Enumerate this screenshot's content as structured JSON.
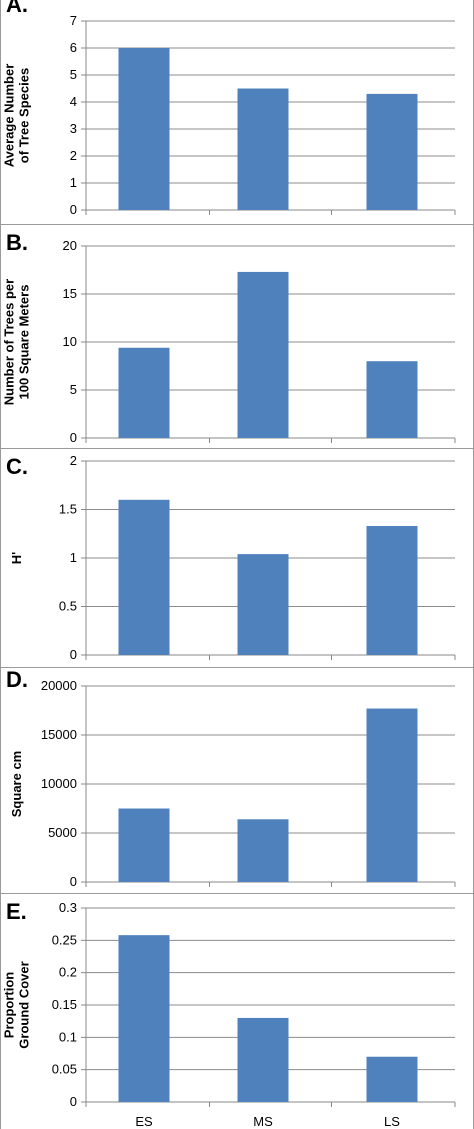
{
  "colors": {
    "bar": "#4f81bd",
    "grid": "#8c8c8c",
    "axis": "#888888",
    "border": "#9a9a9a",
    "text": "#000000"
  },
  "chart_data": [
    {
      "type": "bar",
      "panel_label": "A.",
      "categories": [
        "ES",
        "MS",
        "LS"
      ],
      "show_category_labels": false,
      "values": [
        6.0,
        4.5,
        4.3
      ],
      "ylabel": [
        "Average Number",
        "of Tree Species"
      ],
      "ylim": [
        0,
        7
      ],
      "yticks": [
        {
          "v": 0,
          "t": "0"
        },
        {
          "v": 1,
          "t": "1"
        },
        {
          "v": 2,
          "t": "2"
        },
        {
          "v": 3,
          "t": "3"
        },
        {
          "v": 4,
          "t": "4"
        },
        {
          "v": 5,
          "t": "5"
        },
        {
          "v": 6,
          "t": "6"
        },
        {
          "v": 7,
          "t": "7"
        }
      ],
      "grid": true
    },
    {
      "type": "bar",
      "panel_label": "B.",
      "categories": [
        "ES",
        "MS",
        "LS"
      ],
      "show_category_labels": false,
      "values": [
        9.4,
        17.3,
        8.0
      ],
      "ylabel": [
        "Number of Trees per",
        "100 Square Meters"
      ],
      "ylim": [
        0,
        20
      ],
      "yticks": [
        {
          "v": 0,
          "t": "0"
        },
        {
          "v": 5,
          "t": "5"
        },
        {
          "v": 10,
          "t": "10"
        },
        {
          "v": 15,
          "t": "15"
        },
        {
          "v": 20,
          "t": "20"
        }
      ],
      "grid": true
    },
    {
      "type": "bar",
      "panel_label": "C.",
      "categories": [
        "ES",
        "MS",
        "LS"
      ],
      "show_category_labels": false,
      "values": [
        1.6,
        1.04,
        1.33
      ],
      "ylabel": [
        "H'"
      ],
      "ylim": [
        0,
        2
      ],
      "yticks": [
        {
          "v": 0,
          "t": "0"
        },
        {
          "v": 0.5,
          "t": "0.5"
        },
        {
          "v": 1,
          "t": "1"
        },
        {
          "v": 1.5,
          "t": "1.5"
        },
        {
          "v": 2,
          "t": "2"
        }
      ],
      "grid": true
    },
    {
      "type": "bar",
      "panel_label": "D.",
      "categories": [
        "ES",
        "MS",
        "LS"
      ],
      "show_category_labels": false,
      "values": [
        7500,
        6400,
        17700
      ],
      "ylabel": [
        "Square cm"
      ],
      "ylim": [
        0,
        20000
      ],
      "yticks": [
        {
          "v": 0,
          "t": "0"
        },
        {
          "v": 5000,
          "t": "5000"
        },
        {
          "v": 10000,
          "t": "10000"
        },
        {
          "v": 15000,
          "t": "15000"
        },
        {
          "v": 20000,
          "t": "20000"
        }
      ],
      "grid": true
    },
    {
      "type": "bar",
      "panel_label": "E.",
      "categories": [
        "ES",
        "MS",
        "LS"
      ],
      "show_category_labels": true,
      "values": [
        0.258,
        0.13,
        0.07
      ],
      "ylabel": [
        "Proportion",
        "Ground Cover"
      ],
      "ylim": [
        0,
        0.3
      ],
      "yticks": [
        {
          "v": 0,
          "t": "0"
        },
        {
          "v": 0.05,
          "t": "0.05"
        },
        {
          "v": 0.1,
          "t": "0.1"
        },
        {
          "v": 0.15,
          "t": "0.15"
        },
        {
          "v": 0.2,
          "t": "0.2"
        },
        {
          "v": 0.25,
          "t": "0.25"
        },
        {
          "v": 0.3,
          "t": "0.3"
        }
      ],
      "grid": true
    }
  ]
}
